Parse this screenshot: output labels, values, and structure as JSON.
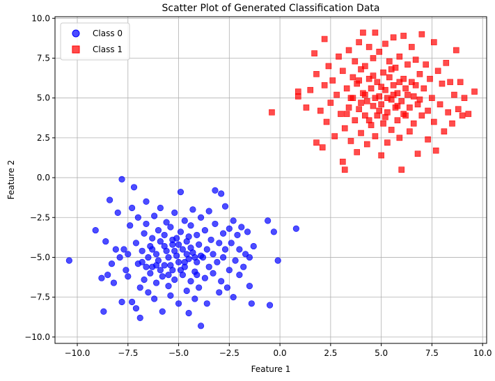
{
  "chart_data": {
    "type": "scatter",
    "title": "Scatter Plot of Generated Classification Data",
    "xlabel": "Feature 1",
    "ylabel": "Feature 2",
    "xlim": [
      -11.1,
      10.2
    ],
    "ylim": [
      -10.4,
      10.1
    ],
    "xticks": [
      -10.0,
      -7.5,
      -5.0,
      -2.5,
      0.0,
      2.5,
      5.0,
      7.5,
      10.0
    ],
    "yticks": [
      -10.0,
      -7.5,
      -5.0,
      -2.5,
      0.0,
      2.5,
      5.0,
      7.5,
      10.0
    ],
    "xtick_labels": [
      "−10.0",
      "−7.5",
      "−5.0",
      "−2.5",
      "0.0",
      "2.5",
      "5.0",
      "7.5",
      "10.0"
    ],
    "ytick_labels": [
      "−10.0",
      "−7.5",
      "−5.0",
      "−2.5",
      "0.0",
      "2.5",
      "5.0",
      "7.5",
      "10.0"
    ],
    "grid": true,
    "legend_position": "top-left",
    "series": [
      {
        "name": "Class 0",
        "marker": "circle",
        "color": "#0000ff",
        "points": [
          [
            -10.4,
            -5.2
          ],
          [
            -9.1,
            -3.3
          ],
          [
            -8.8,
            -6.3
          ],
          [
            -8.7,
            -8.4
          ],
          [
            -8.6,
            -4.0
          ],
          [
            -8.5,
            -6.1
          ],
          [
            -8.4,
            -1.4
          ],
          [
            -8.3,
            -5.4
          ],
          [
            -8.2,
            -6.6
          ],
          [
            -8.1,
            -4.5
          ],
          [
            -8.0,
            -2.2
          ],
          [
            -7.9,
            -5.0
          ],
          [
            -7.8,
            -7.8
          ],
          [
            -7.8,
            -0.1
          ],
          [
            -7.7,
            -4.5
          ],
          [
            -7.6,
            -5.8
          ],
          [
            -7.5,
            -6.2
          ],
          [
            -7.4,
            -3.0
          ],
          [
            -7.3,
            -7.8
          ],
          [
            -7.3,
            -1.9
          ],
          [
            -7.2,
            -0.6
          ],
          [
            -7.1,
            -4.1
          ],
          [
            -7.1,
            -8.2
          ],
          [
            -7.0,
            -5.4
          ],
          [
            -7.0,
            -2.5
          ],
          [
            -6.9,
            -6.9
          ],
          [
            -6.9,
            -8.8
          ],
          [
            -6.8,
            -4.6
          ],
          [
            -6.7,
            -3.5
          ],
          [
            -6.7,
            -6.4
          ],
          [
            -6.6,
            -1.5
          ],
          [
            -6.6,
            -2.9
          ],
          [
            -6.5,
            -5.0
          ],
          [
            -6.5,
            -7.2
          ],
          [
            -6.4,
            -4.3
          ],
          [
            -6.4,
            -6.0
          ],
          [
            -6.3,
            -3.8
          ],
          [
            -6.3,
            -5.6
          ],
          [
            -6.2,
            -2.4
          ],
          [
            -6.2,
            -7.6
          ],
          [
            -6.1,
            -4.8
          ],
          [
            -6.1,
            -6.6
          ],
          [
            -6.0,
            -3.3
          ],
          [
            -6.0,
            -5.2
          ],
          [
            -5.9,
            -1.9
          ],
          [
            -5.9,
            -4.0
          ],
          [
            -5.8,
            -6.2
          ],
          [
            -5.8,
            -8.4
          ],
          [
            -5.7,
            -3.6
          ],
          [
            -5.7,
            -5.5
          ],
          [
            -5.6,
            -2.8
          ],
          [
            -5.6,
            -4.6
          ],
          [
            -5.5,
            -6.8
          ],
          [
            -5.5,
            -5.0
          ],
          [
            -5.4,
            -3.1
          ],
          [
            -5.4,
            -7.4
          ],
          [
            -5.3,
            -4.2
          ],
          [
            -5.3,
            -5.8
          ],
          [
            -5.2,
            -2.2
          ],
          [
            -5.2,
            -6.4
          ],
          [
            -5.1,
            -3.8
          ],
          [
            -5.1,
            -4.9
          ],
          [
            -5.0,
            -7.9
          ],
          [
            -5.0,
            -5.3
          ],
          [
            -4.9,
            -0.9
          ],
          [
            -4.9,
            -3.4
          ],
          [
            -4.8,
            -4.5
          ],
          [
            -4.8,
            -6.1
          ],
          [
            -4.7,
            -2.7
          ],
          [
            -4.7,
            -5.6
          ],
          [
            -4.6,
            -7.1
          ],
          [
            -4.6,
            -4.0
          ],
          [
            -4.5,
            -8.5
          ],
          [
            -4.5,
            -5.1
          ],
          [
            -4.4,
            -3.0
          ],
          [
            -4.4,
            -6.5
          ],
          [
            -4.3,
            -4.7
          ],
          [
            -4.3,
            -2.0
          ],
          [
            -4.2,
            -5.9
          ],
          [
            -4.2,
            -7.6
          ],
          [
            -4.1,
            -3.6
          ],
          [
            -4.1,
            -5.3
          ],
          [
            -4.0,
            -4.2
          ],
          [
            -4.0,
            -6.9
          ],
          [
            -3.9,
            -2.5
          ],
          [
            -3.9,
            -9.3
          ],
          [
            -3.8,
            -5.0
          ],
          [
            -3.7,
            -3.3
          ],
          [
            -3.7,
            -6.3
          ],
          [
            -3.6,
            -4.5
          ],
          [
            -3.6,
            -7.9
          ],
          [
            -3.5,
            -2.1
          ],
          [
            -3.5,
            -5.6
          ],
          [
            -3.4,
            -3.9
          ],
          [
            -3.3,
            -6.0
          ],
          [
            -3.3,
            -4.8
          ],
          [
            -3.2,
            -0.8
          ],
          [
            -3.2,
            -2.9
          ],
          [
            -3.1,
            -5.3
          ],
          [
            -3.0,
            -7.2
          ],
          [
            -3.0,
            -4.1
          ],
          [
            -2.9,
            -1.0
          ],
          [
            -2.9,
            -6.5
          ],
          [
            -2.8,
            -3.5
          ],
          [
            -2.8,
            -5.0
          ],
          [
            -2.7,
            -1.8
          ],
          [
            -2.7,
            -4.5
          ],
          [
            -2.6,
            -6.9
          ],
          [
            -2.5,
            -3.2
          ],
          [
            -2.5,
            -5.8
          ],
          [
            -2.4,
            -4.1
          ],
          [
            -2.3,
            -7.5
          ],
          [
            -2.3,
            -2.7
          ],
          [
            -2.2,
            -5.2
          ],
          [
            -2.1,
            -3.6
          ],
          [
            -2.0,
            -6.1
          ],
          [
            -2.0,
            -4.5
          ],
          [
            -1.9,
            -3.1
          ],
          [
            -1.8,
            -5.6
          ],
          [
            -1.7,
            -4.8
          ],
          [
            -1.6,
            -3.4
          ],
          [
            -1.5,
            -6.8
          ],
          [
            -1.5,
            -5.0
          ],
          [
            -1.4,
            -7.9
          ],
          [
            -1.3,
            -4.3
          ],
          [
            -0.6,
            -2.7
          ],
          [
            -0.5,
            -8.0
          ],
          [
            -0.3,
            -3.4
          ],
          [
            -0.1,
            -5.2
          ],
          [
            0.8,
            -3.2
          ],
          [
            -7.5,
            -4.8
          ],
          [
            -6.8,
            -5.3
          ],
          [
            -6.1,
            -5.5
          ],
          [
            -5.7,
            -4.3
          ],
          [
            -5.4,
            -5.5
          ],
          [
            -5.2,
            -4.6
          ],
          [
            -4.9,
            -5.8
          ],
          [
            -4.6,
            -4.8
          ],
          [
            -4.4,
            -4.4
          ],
          [
            -4.2,
            -5.0
          ],
          [
            -5.9,
            -5.8
          ],
          [
            -6.3,
            -4.5
          ],
          [
            -5.0,
            -4.2
          ],
          [
            -4.7,
            -5.3
          ],
          [
            -5.5,
            -6.1
          ],
          [
            -3.9,
            -4.9
          ],
          [
            -4.1,
            -6.1
          ],
          [
            -6.6,
            -5.6
          ],
          [
            -5.3,
            -3.9
          ],
          [
            -4.5,
            -3.7
          ]
        ]
      },
      {
        "name": "Class 1",
        "marker": "square",
        "color": "#ff0000",
        "points": [
          [
            0.9,
            5.4
          ],
          [
            0.9,
            5.1
          ],
          [
            -0.4,
            4.1
          ],
          [
            1.3,
            4.4
          ],
          [
            1.5,
            5.5
          ],
          [
            1.7,
            7.8
          ],
          [
            1.8,
            6.5
          ],
          [
            1.8,
            2.2
          ],
          [
            2.0,
            4.2
          ],
          [
            2.1,
            1.9
          ],
          [
            2.2,
            8.7
          ],
          [
            2.2,
            5.8
          ],
          [
            2.3,
            3.5
          ],
          [
            2.4,
            7.0
          ],
          [
            2.5,
            4.7
          ],
          [
            2.6,
            6.1
          ],
          [
            2.7,
            2.6
          ],
          [
            2.8,
            5.2
          ],
          [
            2.9,
            7.6
          ],
          [
            3.0,
            4.0
          ],
          [
            3.1,
            1.0
          ],
          [
            3.1,
            6.7
          ],
          [
            3.2,
            3.1
          ],
          [
            3.2,
            0.5
          ],
          [
            3.3,
            5.6
          ],
          [
            3.4,
            8.0
          ],
          [
            3.4,
            4.4
          ],
          [
            3.5,
            2.3
          ],
          [
            3.6,
            6.3
          ],
          [
            3.6,
            5.0
          ],
          [
            3.7,
            7.3
          ],
          [
            3.7,
            3.6
          ],
          [
            3.8,
            1.6
          ],
          [
            3.8,
            5.9
          ],
          [
            3.9,
            4.3
          ],
          [
            3.9,
            8.5
          ],
          [
            4.0,
            6.8
          ],
          [
            4.0,
            2.8
          ],
          [
            4.1,
            5.3
          ],
          [
            4.1,
            9.1
          ],
          [
            4.2,
            3.9
          ],
          [
            4.2,
            7.0
          ],
          [
            4.3,
            4.8
          ],
          [
            4.3,
            2.1
          ],
          [
            4.4,
            6.2
          ],
          [
            4.4,
            8.2
          ],
          [
            4.5,
            3.3
          ],
          [
            4.5,
            5.6
          ],
          [
            4.6,
            7.5
          ],
          [
            4.6,
            4.5
          ],
          [
            4.7,
            9.1
          ],
          [
            4.7,
            2.6
          ],
          [
            4.8,
            6.0
          ],
          [
            4.8,
            3.9
          ],
          [
            4.9,
            5.1
          ],
          [
            4.9,
            7.9
          ],
          [
            5.0,
            1.4
          ],
          [
            5.0,
            4.6
          ],
          [
            5.1,
            6.6
          ],
          [
            5.1,
            3.4
          ],
          [
            5.2,
            5.5
          ],
          [
            5.2,
            8.4
          ],
          [
            5.3,
            4.1
          ],
          [
            5.3,
            2.2
          ],
          [
            5.4,
            6.3
          ],
          [
            5.4,
            7.3
          ],
          [
            5.5,
            4.9
          ],
          [
            5.5,
            3.0
          ],
          [
            5.6,
            5.8
          ],
          [
            5.6,
            8.8
          ],
          [
            5.7,
            4.4
          ],
          [
            5.7,
            6.9
          ],
          [
            5.8,
            3.6
          ],
          [
            5.8,
            5.3
          ],
          [
            5.9,
            7.6
          ],
          [
            5.9,
            2.5
          ],
          [
            6.0,
            4.8
          ],
          [
            6.0,
            0.5
          ],
          [
            6.1,
            6.2
          ],
          [
            6.1,
            8.9
          ],
          [
            6.2,
            3.9
          ],
          [
            6.2,
            5.6
          ],
          [
            6.3,
            7.1
          ],
          [
            6.4,
            4.4
          ],
          [
            6.4,
            2.9
          ],
          [
            6.5,
            6.0
          ],
          [
            6.5,
            8.2
          ],
          [
            6.6,
            5.1
          ],
          [
            6.6,
            3.4
          ],
          [
            6.7,
            7.4
          ],
          [
            6.8,
            4.6
          ],
          [
            6.8,
            1.5
          ],
          [
            6.9,
            6.5
          ],
          [
            7.0,
            9.0
          ],
          [
            7.0,
            3.9
          ],
          [
            7.1,
            5.6
          ],
          [
            7.2,
            7.1
          ],
          [
            7.3,
            4.2
          ],
          [
            7.3,
            2.4
          ],
          [
            7.4,
            6.2
          ],
          [
            7.5,
            5.0
          ],
          [
            7.6,
            8.5
          ],
          [
            7.6,
            3.5
          ],
          [
            7.7,
            1.7
          ],
          [
            7.8,
            6.7
          ],
          [
            7.9,
            4.6
          ],
          [
            8.0,
            5.9
          ],
          [
            8.1,
            2.9
          ],
          [
            8.2,
            7.2
          ],
          [
            8.3,
            4.1
          ],
          [
            8.4,
            6.0
          ],
          [
            8.5,
            3.4
          ],
          [
            8.6,
            5.2
          ],
          [
            8.7,
            8.0
          ],
          [
            8.8,
            4.3
          ],
          [
            8.9,
            6.0
          ],
          [
            9.0,
            3.9
          ],
          [
            9.1,
            5.0
          ],
          [
            9.3,
            4.0
          ],
          [
            9.6,
            5.4
          ],
          [
            3.5,
            5.0
          ],
          [
            4.2,
            5.2
          ],
          [
            4.9,
            4.2
          ],
          [
            5.3,
            5.0
          ],
          [
            5.8,
            4.5
          ],
          [
            6.3,
            5.2
          ],
          [
            4.6,
            6.4
          ],
          [
            5.5,
            6.8
          ],
          [
            3.9,
            6.1
          ],
          [
            6.1,
            4.0
          ],
          [
            4.4,
            3.6
          ],
          [
            5.2,
            3.8
          ],
          [
            6.7,
            5.8
          ],
          [
            3.3,
            4.0
          ],
          [
            5.0,
            5.7
          ],
          [
            5.9,
            6.0
          ],
          [
            4.0,
            4.7
          ],
          [
            6.9,
            4.9
          ],
          [
            4.7,
            5.0
          ],
          [
            5.6,
            5.2
          ]
        ]
      }
    ]
  }
}
